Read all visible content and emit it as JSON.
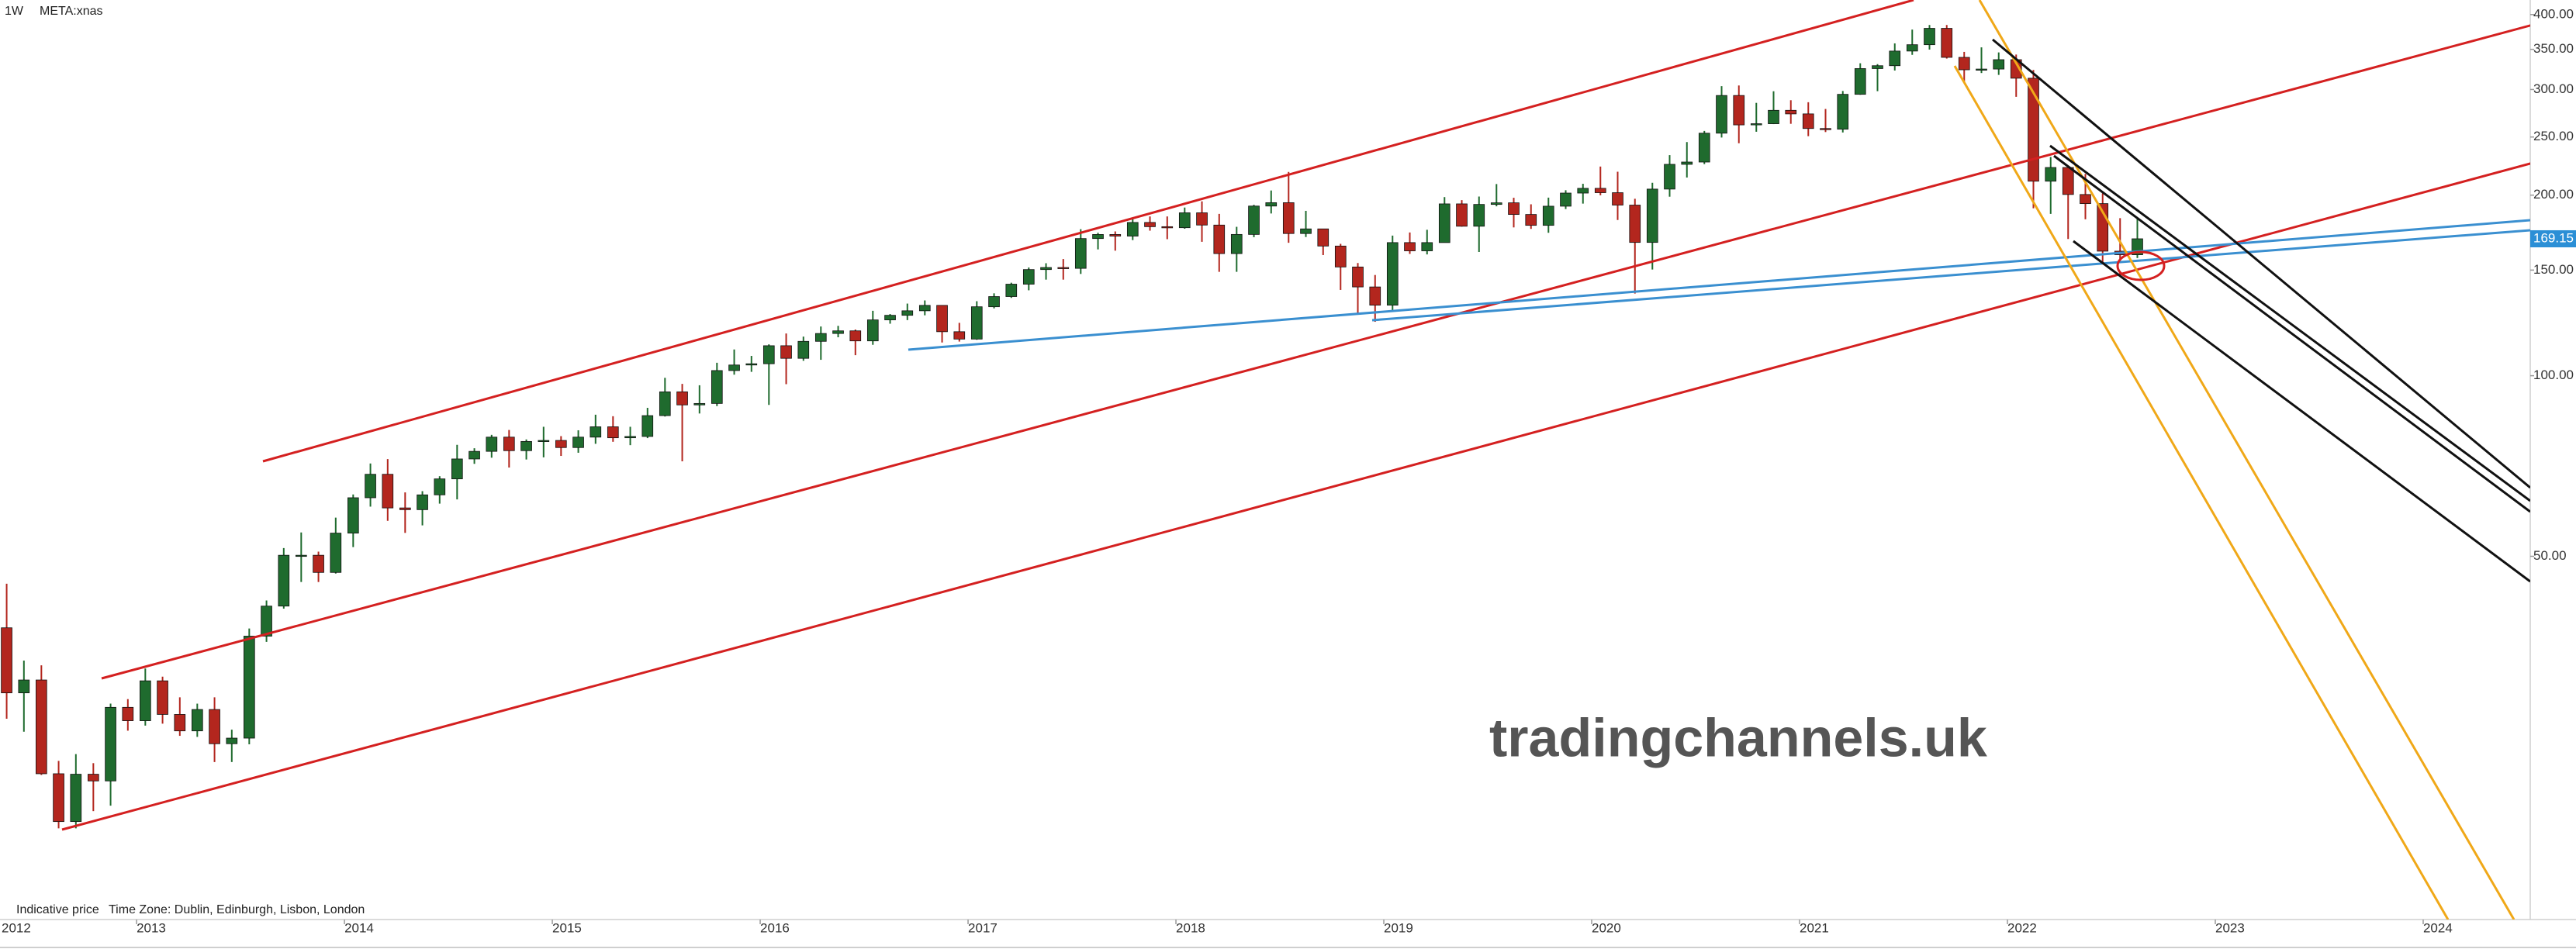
{
  "chart_data": {
    "type": "candlestick",
    "interval": "1W",
    "symbol": "META:xnas",
    "footer_note": "Indicative price",
    "timezone": "Time Zone: Dublin, Edinburgh, Lisbon, London",
    "watermark": "tradingchannels.uk",
    "up_color": "#1f6b2e",
    "down_color": "#b3261e",
    "ylog": true,
    "xlim": [
      2012.343,
      2024.515
    ],
    "ylim": [
      12.4,
      423
    ],
    "xticks": [
      2012,
      2013,
      2014,
      2015,
      2016,
      2017,
      2018,
      2019,
      2020,
      2021,
      2022,
      2023,
      2024
    ],
    "yticks": [
      {
        "value": 50,
        "label": "50.00"
      },
      {
        "value": 100,
        "label": "100.00"
      },
      {
        "value": 150,
        "label": "150.00"
      },
      {
        "value": 200,
        "label": "200.00"
      },
      {
        "value": 250,
        "label": "250.00"
      },
      {
        "value": 300,
        "label": "300.00"
      },
      {
        "value": 350,
        "label": "350.00"
      },
      {
        "value": 400,
        "label": "400.00"
      }
    ],
    "x": [
      2012.375,
      2012.458,
      2012.542,
      2012.625,
      2012.708,
      2012.792,
      2012.875,
      2012.958,
      2013.042,
      2013.125,
      2013.208,
      2013.292,
      2013.375,
      2013.458,
      2013.542,
      2013.625,
      2013.708,
      2013.792,
      2013.875,
      2013.958,
      2014.042,
      2014.125,
      2014.208,
      2014.292,
      2014.375,
      2014.458,
      2014.542,
      2014.625,
      2014.708,
      2014.792,
      2014.875,
      2014.958,
      2015.042,
      2015.125,
      2015.208,
      2015.292,
      2015.375,
      2015.458,
      2015.542,
      2015.625,
      2015.708,
      2015.792,
      2015.875,
      2015.958,
      2016.042,
      2016.125,
      2016.208,
      2016.292,
      2016.375,
      2016.458,
      2016.542,
      2016.625,
      2016.708,
      2016.792,
      2016.875,
      2016.958,
      2017.042,
      2017.125,
      2017.208,
      2017.292,
      2017.375,
      2017.458,
      2017.542,
      2017.625,
      2017.708,
      2017.792,
      2017.875,
      2017.958,
      2018.042,
      2018.125,
      2018.208,
      2018.292,
      2018.375,
      2018.458,
      2018.542,
      2018.625,
      2018.708,
      2018.792,
      2018.875,
      2018.958,
      2019.042,
      2019.125,
      2019.208,
      2019.292,
      2019.375,
      2019.458,
      2019.542,
      2019.625,
      2019.708,
      2019.792,
      2019.875,
      2019.958,
      2020.042,
      2020.125,
      2020.208,
      2020.292,
      2020.375,
      2020.458,
      2020.542,
      2020.625,
      2020.708,
      2020.792,
      2020.875,
      2020.958,
      2021.042,
      2021.125,
      2021.208,
      2021.292,
      2021.375,
      2021.458,
      2021.542,
      2021.625,
      2021.708,
      2021.792,
      2021.875,
      2021.958,
      2022.042,
      2022.125,
      2022.208,
      2022.292,
      2022.375,
      2022.458,
      2022.542,
      2022.625
    ],
    "open": [
      38,
      29.6,
      31.1,
      21.7,
      18.06,
      21.66,
      21.11,
      28,
      26.6,
      31,
      27.25,
      25.58,
      27.77,
      24.35,
      24.88,
      36.8,
      41.3,
      50.2,
      50.2,
      47,
      54.65,
      62.6,
      68.5,
      60.2,
      59.8,
      63.3,
      67.3,
      72.65,
      74.8,
      79,
      75,
      77.7,
      78,
      75.9,
      79,
      82.2,
      78.8,
      79.2,
      85.8,
      94,
      89.4,
      89.9,
      102,
      104.2,
      104.7,
      112.2,
      106.9,
      114.1,
      117.6,
      118.8,
      114.3,
      123.9,
      126.1,
      128.3,
      131,
      118.4,
      115.1,
      130.3,
      135.5,
      142.1,
      150.3,
      151.5,
      151,
      169.3,
      171.97,
      170.9,
      180.1,
      177.2,
      176.5,
      186.9,
      178.3,
      159.8,
      172,
      191.8,
      194.3,
      172.6,
      175.7,
      164.5,
      151.8,
      140.6,
      131.1,
      166.7,
      161.5,
      166.7,
      193.4,
      177.5,
      193,
      194.2,
      185.7,
      178.1,
      191.7,
      201.6,
      205.3,
      201.9,
      192.5,
      166.8,
      204.7,
      225.1,
      227.1,
      253.7,
      293.2,
      261.9,
      263.1,
      276.97,
      273.2,
      258.3,
      257.6,
      294.5,
      325.1,
      328.7,
      347.7,
      356.3,
      379.4,
      339.4,
      323.6,
      324.5,
      336.4,
      313.3,
      211,
      222.4,
      200.5,
      193.6,
      161.3,
      159.1
    ],
    "high": [
      45,
      33.5,
      32.9,
      22.8,
      23.4,
      22.6,
      28.4,
      28.9,
      32.5,
      31.5,
      29.1,
      28.4,
      29.1,
      25.7,
      37.9,
      42.2,
      51.6,
      54.8,
      50.9,
      58,
      63.4,
      71.4,
      72.6,
      63.9,
      64.2,
      68,
      76.7,
      75.7,
      79.7,
      81.2,
      78.3,
      82.2,
      79.3,
      81.1,
      86.1,
      85.6,
      82.2,
      88.4,
      99.2,
      96.9,
      96.4,
      105.1,
      110.6,
      107.9,
      112.8,
      117.6,
      116.2,
      120.8,
      121.1,
      119.4,
      128.3,
      126.7,
      131.9,
      133.5,
      131.1,
      122.5,
      133.1,
      137.2,
      142.9,
      151.5,
      154,
      156.5,
      175.5,
      173.1,
      174,
      182.9,
      184.3,
      184.3,
      190.7,
      195.3,
      186.1,
      177.1,
      192.7,
      203.6,
      218.6,
      188.3,
      173.9,
      165.9,
      154.1,
      147.2,
      171.2,
      173.3,
      175.1,
      198.5,
      196.2,
      198.9,
      208.7,
      198,
      193.1,
      198.1,
      203.8,
      208.9,
      223.2,
      218.8,
      197.2,
      209.7,
      233.2,
      245.2,
      255.9,
      303.9,
      304.7,
      285,
      298,
      287.9,
      285.7,
      278.4,
      298.3,
      331.8,
      330.7,
      358.1,
      377.6,
      384.3,
      384.3,
      346.6,
      352.7,
      345.9,
      343.1,
      323.4,
      231.5,
      224,
      217,
      201.3,
      183.1,
      183.1
    ],
    "low": [
      26.8,
      25.5,
      21.6,
      17.6,
      17.6,
      18.8,
      19.2,
      25.6,
      26.1,
      26.3,
      25.1,
      25,
      22.7,
      22.7,
      24.3,
      36,
      40.9,
      45.3,
      45.3,
      46.8,
      51.8,
      60.5,
      57.3,
      54.7,
      56.3,
      61.2,
      62.2,
      71.3,
      73,
      70.3,
      72.5,
      73.1,
      73.5,
      74.4,
      77,
      77.6,
      76.6,
      78.7,
      85.5,
      72,
      86.5,
      89,
      100.4,
      101.5,
      89.4,
      96.8,
      105.9,
      106.3,
      115.9,
      108.2,
      112.6,
      122.1,
      123.8,
      126.1,
      113.6,
      114,
      114.8,
      129.5,
      134.8,
      138.8,
      144.6,
      144.6,
      147.8,
      162.4,
      161.6,
      168.3,
      174.5,
      168.9,
      175.8,
      167.2,
      149,
      149,
      170.2,
      186.4,
      166.6,
      170.3,
      158.9,
      139,
      126.9,
      123,
      128.6,
      159.6,
      159.3,
      166.7,
      177.2,
      160.8,
      191.6,
      176.7,
      175.7,
      173.1,
      189.6,
      193.6,
      199.9,
      181.8,
      137.1,
      150.3,
      198.8,
      214,
      225.3,
      249.5,
      244.1,
      255.1,
      262.7,
      263,
      250.8,
      254.8,
      254.4,
      294,
      298.1,
      322.7,
      342.7,
      349.7,
      337.8,
      308.1,
      319.6,
      317.3,
      291.7,
      190.2,
      186.1,
      169,
      182.3,
      154.3,
      154.1,
      157.1
    ],
    "close": [
      29.6,
      31.1,
      21.7,
      18.06,
      21.66,
      21.11,
      28,
      26.6,
      31,
      27.25,
      25.58,
      27.77,
      24.35,
      24.88,
      36.8,
      41.3,
      50.2,
      50.2,
      47,
      54.65,
      62.6,
      68.5,
      60.2,
      59.8,
      63.3,
      67.3,
      72.65,
      74.8,
      79,
      75,
      77.7,
      78,
      75.9,
      79,
      82.2,
      78.8,
      79.2,
      85.8,
      94,
      89.4,
      89.9,
      102,
      104.2,
      104.7,
      112.2,
      106.9,
      114.1,
      117.6,
      118.8,
      114.3,
      123.9,
      126.1,
      128.3,
      131,
      118.4,
      115.1,
      130.3,
      135.5,
      142.1,
      150.3,
      151.5,
      151,
      169.3,
      171.97,
      170.9,
      180.1,
      177.2,
      176.5,
      186.9,
      178.3,
      159.8,
      172,
      191.8,
      194.3,
      172.6,
      175.7,
      164.5,
      151.8,
      140.6,
      131.1,
      166.7,
      161.5,
      166.7,
      193.4,
      177.5,
      193,
      194.2,
      185.7,
      178.1,
      191.7,
      201.6,
      205.3,
      201.9,
      192.5,
      166.8,
      204.7,
      225.1,
      227.1,
      253.7,
      293.2,
      261.9,
      263.1,
      276.97,
      273.2,
      258.3,
      257.6,
      294.5,
      325.1,
      328.7,
      347.7,
      356.3,
      379.4,
      339.4,
      323.6,
      324.5,
      336.4,
      313.3,
      211,
      222.4,
      200.5,
      193.6,
      161.3,
      159.1,
      169.15
    ]
  }
}
